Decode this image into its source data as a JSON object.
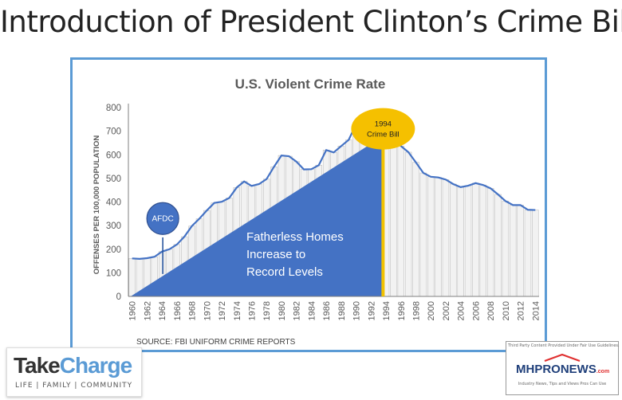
{
  "slide": {
    "title": "Introduction of President Clinton’s Crime Bill"
  },
  "chart_data": {
    "type": "bar",
    "title": "U.S. Violent Crime Rate",
    "ylabel": "OFFENSES PER 100,000 POPULATION",
    "xlabel": "",
    "ylim": [
      0,
      800
    ],
    "yticks": [
      0,
      100,
      200,
      300,
      400,
      500,
      600,
      700,
      800
    ],
    "xtick_labels": [
      "1960",
      "1962",
      "1964",
      "1966",
      "1968",
      "1970",
      "1972",
      "1974",
      "1976",
      "1978",
      "1980",
      "1982",
      "1984",
      "1986",
      "1988",
      "1990",
      "1992",
      "1994",
      "1996",
      "1998",
      "2000",
      "2002",
      "2004",
      "2006",
      "2008",
      "2010",
      "2012",
      "2014"
    ],
    "years": [
      1960,
      1961,
      1962,
      1963,
      1964,
      1965,
      1966,
      1967,
      1968,
      1969,
      1970,
      1971,
      1972,
      1973,
      1974,
      1975,
      1976,
      1977,
      1978,
      1979,
      1980,
      1981,
      1982,
      1983,
      1984,
      1985,
      1986,
      1987,
      1988,
      1989,
      1990,
      1991,
      1992,
      1993,
      1994,
      1995,
      1996,
      1997,
      1998,
      1999,
      2000,
      2001,
      2002,
      2003,
      2004,
      2005,
      2006,
      2007,
      2008,
      2009,
      2010,
      2011,
      2012,
      2013,
      2014
    ],
    "values": [
      161,
      159,
      162,
      168,
      190,
      200,
      220,
      253,
      298,
      329,
      364,
      396,
      401,
      417,
      461,
      487,
      468,
      476,
      497,
      549,
      597,
      594,
      571,
      538,
      539,
      556,
      620,
      610,
      637,
      663,
      730,
      758,
      758,
      747,
      714,
      685,
      637,
      611,
      568,
      523,
      507,
      504,
      495,
      476,
      463,
      469,
      480,
      472,
      458,
      432,
      404,
      387,
      387,
      367,
      366
    ],
    "source": "SOURCE: FBI UNIFORM CRIME REPORTS",
    "annotations": {
      "afdc_label": "AFDC",
      "crime_bill_year": "1994",
      "crime_bill_label": "Crime Bill",
      "triangle_text": [
        "Fatherless Homes",
        "Increase to",
        "Record Levels"
      ]
    },
    "colors": {
      "bar_fill": "#f2f2f2",
      "bar_stroke": "#bfbfbf",
      "line": "#4472c4",
      "triangle": "#4472c4",
      "crime_bill_marker": "#f2c200",
      "crime_bill_bubble": "#f5c000",
      "frame": "#5b9bd5"
    }
  },
  "logos": {
    "takecharge_part1": "Take",
    "takecharge_part2": "Charge",
    "takecharge_tagline": "LIFE | FAMILY | COMMUNITY",
    "mhp_notice": "Third Party Content Provided Under Fair Use Guidelines.",
    "mhp_name": "MHPRONEWS",
    "mhp_suffix": ".com",
    "mhp_tagline": "Industry News, Tips and Views Pros Can Use"
  }
}
